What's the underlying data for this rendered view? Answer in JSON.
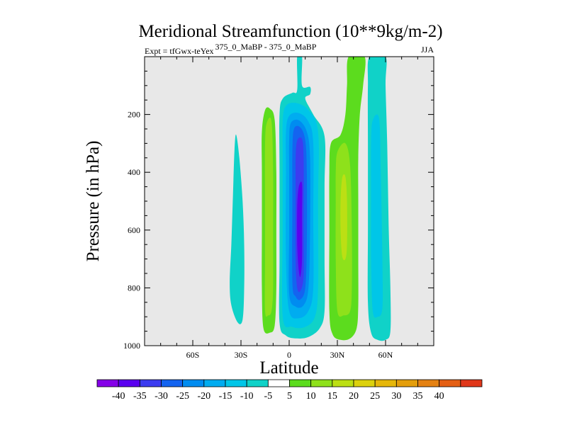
{
  "chart_data": {
    "type": "contour",
    "title": "Meridional Streamfunction (10**9kg/m-2)",
    "subtitle_left": "Expt = tfGwx-teYex",
    "subtitle_left_sup": "375_0_MaBP - 375_0_MaBP",
    "subtitle_right": "JJA",
    "xlabel": "Latitude",
    "ylabel": "Pressure (in hPa)",
    "xlim": [
      -90,
      90
    ],
    "ylim": [
      1000,
      0
    ],
    "x_ticks": [
      {
        "value": -60,
        "label": "60S"
      },
      {
        "value": -30,
        "label": "30S"
      },
      {
        "value": 0,
        "label": "0"
      },
      {
        "value": 30,
        "label": "30N"
      },
      {
        "value": 60,
        "label": "60N"
      }
    ],
    "y_ticks": [
      {
        "value": 200,
        "label": "200"
      },
      {
        "value": 400,
        "label": "400"
      },
      {
        "value": 600,
        "label": "600"
      },
      {
        "value": 800,
        "label": "800"
      },
      {
        "value": 1000,
        "label": "1000"
      }
    ],
    "background_color": "#e8e8e8",
    "colorbar": {
      "colors": [
        "#8500e8",
        "#5a00f0",
        "#3c3cf0",
        "#1464f0",
        "#008cf0",
        "#00acf0",
        "#00c6e8",
        "#10d2c8",
        "#ffffff",
        "#5cdc1e",
        "#8ee11b",
        "#bcdf14",
        "#dcd10d",
        "#e6b70a",
        "#e49e0b",
        "#e48112",
        "#e45f14",
        "#e0371a"
      ],
      "labels": [
        "-40",
        "-35",
        "-30",
        "-25",
        "-20",
        "-15",
        "-10",
        "-5",
        "5",
        "10",
        "15",
        "20",
        "25",
        "30",
        "35",
        "40"
      ]
    },
    "features": [
      {
        "name": "weak negative cell ~35S",
        "levels": [
          {
            "value": -5,
            "color": "#10d2c8",
            "points": [
              [
                -33,
                270
              ],
              [
                -31,
                350
              ],
              [
                -29,
                500
              ],
              [
                -28,
                650
              ],
              [
                -28,
                800
              ],
              [
                -29,
                910
              ],
              [
                -32,
                920
              ],
              [
                -36,
                860
              ],
              [
                -37,
                780
              ],
              [
                -36,
                650
              ],
              [
                -35,
                480
              ],
              [
                -34,
                320
              ]
            ]
          }
        ]
      },
      {
        "name": "positive cell ~15S",
        "levels": [
          {
            "value": 5,
            "color": "#5cdc1e",
            "points": [
              [
                -15,
                185
              ],
              [
                -12,
                180
              ],
              [
                -9,
                220
              ],
              [
                -8,
                400
              ],
              [
                -8,
                600
              ],
              [
                -8,
                800
              ],
              [
                -9,
                930
              ],
              [
                -12,
                955
              ],
              [
                -16,
                940
              ],
              [
                -17,
                800
              ],
              [
                -17,
                600
              ],
              [
                -17,
                400
              ],
              [
                -17,
                260
              ]
            ]
          },
          {
            "value": 10,
            "color": "#8ee11b",
            "points": [
              [
                -14,
                230
              ],
              [
                -11,
                225
              ],
              [
                -10,
                400
              ],
              [
                -10,
                600
              ],
              [
                -10,
                800
              ],
              [
                -11,
                880
              ],
              [
                -13,
                895
              ],
              [
                -15,
                880
              ],
              [
                -15,
                700
              ],
              [
                -15,
                500
              ],
              [
                -15,
                300
              ]
            ]
          }
        ]
      },
      {
        "name": "strong negative cell ~5N",
        "levels": [
          {
            "value": -5,
            "color": "#10d2c8",
            "points": [
              [
                5,
                0
              ],
              [
                8,
                0
              ],
              [
                8,
                100
              ],
              [
                13,
                105
              ],
              [
                13,
                130
              ],
              [
                10,
                145
              ],
              [
                15,
                200
              ],
              [
                22,
                275
              ],
              [
                22,
                450
              ],
              [
                22,
                700
              ],
              [
                22,
                880
              ],
              [
                19,
                940
              ],
              [
                12,
                970
              ],
              [
                5,
                975
              ],
              [
                -2,
                965
              ],
              [
                -6,
                920
              ],
              [
                -6,
                700
              ],
              [
                -6,
                400
              ],
              [
                -6,
                200
              ],
              [
                -4,
                145
              ],
              [
                2,
                125
              ],
              [
                5,
                115
              ]
            ]
          },
          {
            "value": -10,
            "color": "#00c6e8",
            "points": [
              [
                -2,
                170
              ],
              [
                4,
                160
              ],
              [
                12,
                185
              ],
              [
                18,
                260
              ],
              [
                18,
                500
              ],
              [
                18,
                800
              ],
              [
                16,
                900
              ],
              [
                10,
                935
              ],
              [
                2,
                935
              ],
              [
                -4,
                900
              ],
              [
                -4,
                600
              ],
              [
                -4,
                350
              ],
              [
                -4,
                220
              ]
            ]
          },
          {
            "value": -15,
            "color": "#00acf0",
            "points": [
              [
                0,
                205
              ],
              [
                6,
                195
              ],
              [
                12,
                225
              ],
              [
                15,
                300
              ],
              [
                15,
                550
              ],
              [
                15,
                800
              ],
              [
                12,
                880
              ],
              [
                6,
                905
              ],
              [
                0,
                880
              ],
              [
                -2,
                700
              ],
              [
                -2,
                400
              ],
              [
                -2,
                260
              ]
            ]
          },
          {
            "value": -20,
            "color": "#008cf0",
            "points": [
              [
                1,
                230
              ],
              [
                6,
                220
              ],
              [
                11,
                260
              ],
              [
                13,
                350
              ],
              [
                13,
                600
              ],
              [
                12,
                800
              ],
              [
                9,
                860
              ],
              [
                4,
                865
              ],
              [
                0,
                820
              ],
              [
                0,
                600
              ],
              [
                0,
                400
              ],
              [
                0,
                290
              ]
            ]
          },
          {
            "value": -25,
            "color": "#1464f0",
            "points": [
              [
                3,
                250
              ],
              [
                7,
                245
              ],
              [
                10,
                290
              ],
              [
                11,
                400
              ],
              [
                11,
                650
              ],
              [
                10,
                800
              ],
              [
                7,
                840
              ],
              [
                4,
                830
              ],
              [
                2,
                780
              ],
              [
                2,
                500
              ],
              [
                2,
                330
              ]
            ]
          },
          {
            "value": -30,
            "color": "#3c3cf0",
            "points": [
              [
                5,
                290
              ],
              [
                8,
                285
              ],
              [
                9,
                350
              ],
              [
                9,
                600
              ],
              [
                9,
                760
              ],
              [
                7,
                810
              ],
              [
                5,
                800
              ],
              [
                4,
                700
              ],
              [
                4,
                450
              ],
              [
                4,
                350
              ]
            ]
          },
          {
            "value": -35,
            "color": "#5a00f0",
            "points": [
              [
                6,
                450
              ],
              [
                8,
                440
              ],
              [
                8,
                550
              ],
              [
                8,
                700
              ],
              [
                7,
                760
              ],
              [
                6,
                740
              ],
              [
                5,
                650
              ],
              [
                5,
                520
              ]
            ]
          }
        ]
      },
      {
        "name": "positive cell ~35N",
        "levels": [
          {
            "value": 5,
            "color": "#5cdc1e",
            "points": [
              [
                37,
                0
              ],
              [
                47,
                0
              ],
              [
                46,
                100
              ],
              [
                44,
                200
              ],
              [
                43,
                350
              ],
              [
                43,
                500
              ],
              [
                43,
                700
              ],
              [
                43,
                860
              ],
              [
                42,
                940
              ],
              [
                38,
                975
              ],
              [
                32,
                980
              ],
              [
                27,
                960
              ],
              [
                25,
                880
              ],
              [
                25,
                600
              ],
              [
                25,
                400
              ],
              [
                26,
                300
              ],
              [
                32,
                270
              ],
              [
                35,
                200
              ],
              [
                36,
                100
              ]
            ]
          },
          {
            "value": 10,
            "color": "#8ee11b",
            "points": [
              [
                30,
                330
              ],
              [
                35,
                300
              ],
              [
                38,
                380
              ],
              [
                39,
                600
              ],
              [
                39,
                800
              ],
              [
                38,
                880
              ],
              [
                34,
                895
              ],
              [
                30,
                880
              ],
              [
                29,
                700
              ],
              [
                29,
                500
              ],
              [
                29,
                400
              ]
            ]
          },
          {
            "value": 15,
            "color": "#bcdf14",
            "points": [
              [
                33,
                420
              ],
              [
                35,
                415
              ],
              [
                36,
                500
              ],
              [
                36,
                650
              ],
              [
                35,
                700
              ],
              [
                33,
                690
              ],
              [
                32,
                600
              ],
              [
                32,
                500
              ]
            ]
          }
        ]
      },
      {
        "name": "negative cell ~60N",
        "levels": [
          {
            "value": -5,
            "color": "#10d2c8",
            "points": [
              [
                50,
                0
              ],
              [
                60,
                0
              ],
              [
                60,
                100
              ],
              [
                61,
                300
              ],
              [
                62,
                600
              ],
              [
                63,
                800
              ],
              [
                63,
                950
              ],
              [
                60,
                980
              ],
              [
                55,
                980
              ],
              [
                51,
                955
              ],
              [
                49,
                850
              ],
              [
                49,
                600
              ],
              [
                49,
                300
              ],
              [
                49,
                100
              ]
            ]
          },
          {
            "value": -10,
            "color": "#00c6e8",
            "points": [
              [
                52,
                220
              ],
              [
                56,
                215
              ],
              [
                57,
                400
              ],
              [
                58,
                700
              ],
              [
                58,
                870
              ],
              [
                55,
                900
              ],
              [
                52,
                880
              ],
              [
                51,
                700
              ],
              [
                51,
                500
              ],
              [
                51,
                300
              ]
            ]
          }
        ]
      }
    ]
  }
}
